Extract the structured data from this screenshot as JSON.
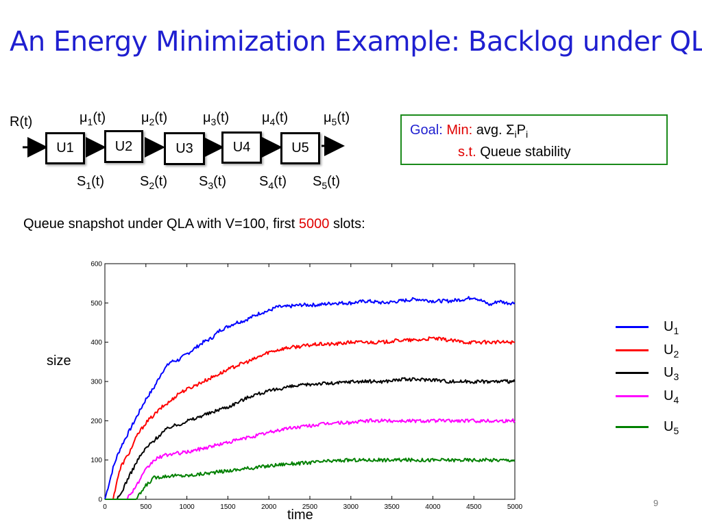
{
  "slide": {
    "title": "An Energy Minimization Example: Backlog under QLA",
    "page_number": "9"
  },
  "network": {
    "arrival_label": "R(t)",
    "service_labels": [
      {
        "sym": "μ",
        "sub": "1",
        "arg": "(t)"
      },
      {
        "sym": "μ",
        "sub": "2",
        "arg": "(t)"
      },
      {
        "sym": "μ",
        "sub": "3",
        "arg": "(t)"
      },
      {
        "sym": "μ",
        "sub": "4",
        "arg": "(t)"
      },
      {
        "sym": "μ",
        "sub": "5",
        "arg": "(t)"
      }
    ],
    "state_labels": [
      {
        "sym": "S",
        "sub": "1",
        "arg": "(t)"
      },
      {
        "sym": "S",
        "sub": "2",
        "arg": "(t)"
      },
      {
        "sym": "S",
        "sub": "3",
        "arg": "(t)"
      },
      {
        "sym": "S",
        "sub": "4",
        "arg": "(t)"
      },
      {
        "sym": "S",
        "sub": "5",
        "arg": "(t)"
      }
    ],
    "queues": [
      "U1",
      "U2",
      "U3",
      "U4",
      "U5"
    ]
  },
  "goal": {
    "goal_word": "Goal:",
    "min_word": "Min:",
    "objective_prefix": "avg. Σ",
    "objective_sub_i": "i",
    "objective_P": "P",
    "st_word": "s.t.",
    "constraint": "Queue stability"
  },
  "caption": {
    "prefix": "Queue snapshot under QLA with V=100, first ",
    "highlight": "5000",
    "suffix": " slots:"
  },
  "chart_data": {
    "type": "line",
    "xlabel": "time",
    "ylabel": "size",
    "xlim": [
      0,
      5000
    ],
    "ylim": [
      0,
      600
    ],
    "xticks": [
      0,
      500,
      1000,
      1500,
      2000,
      2500,
      3000,
      3500,
      4000,
      4500,
      5000
    ],
    "yticks": [
      0,
      100,
      200,
      300,
      400,
      500,
      600
    ],
    "grid": false,
    "legend_position": "right",
    "series": [
      {
        "name": "U1",
        "label_base": "U",
        "label_sub": "1",
        "color": "#0000ff",
        "x": [
          0,
          50,
          100,
          150,
          200,
          300,
          400,
          500,
          600,
          700,
          800,
          900,
          1000,
          1100,
          1200,
          1300,
          1400,
          1500,
          1600,
          1700,
          1800,
          1900,
          2000,
          2100,
          2200,
          2400,
          2600,
          2800,
          3000,
          3200,
          3400,
          3600,
          3800,
          4000,
          4200,
          4400,
          4500,
          4600,
          4700,
          4800,
          4900,
          5000
        ],
        "y": [
          0,
          40,
          80,
          110,
          135,
          175,
          215,
          255,
          285,
          325,
          350,
          355,
          370,
          385,
          400,
          410,
          430,
          440,
          450,
          455,
          465,
          475,
          480,
          490,
          490,
          495,
          495,
          500,
          500,
          505,
          500,
          505,
          510,
          505,
          505,
          510,
          515,
          505,
          495,
          505,
          500,
          500
        ]
      },
      {
        "name": "U2",
        "label_base": "U",
        "label_sub": "2",
        "color": "#ff0000",
        "x": [
          0,
          100,
          150,
          200,
          300,
          400,
          500,
          600,
          700,
          800,
          900,
          1000,
          1100,
          1200,
          1300,
          1400,
          1500,
          1600,
          1800,
          2000,
          2200,
          2400,
          2600,
          2800,
          3000,
          3200,
          3400,
          3600,
          3800,
          4000,
          4200,
          4400,
          4600,
          4800,
          5000
        ],
        "y": [
          0,
          0,
          50,
          85,
          120,
          165,
          195,
          215,
          235,
          250,
          270,
          280,
          290,
          300,
          310,
          320,
          330,
          340,
          355,
          375,
          385,
          390,
          395,
          395,
          400,
          400,
          400,
          405,
          405,
          410,
          405,
          400,
          400,
          400,
          400
        ]
      },
      {
        "name": "U3",
        "label_base": "U",
        "label_sub": "3",
        "color": "#000000",
        "x": [
          0,
          150,
          200,
          250,
          300,
          400,
          500,
          600,
          700,
          800,
          900,
          1000,
          1100,
          1200,
          1300,
          1400,
          1500,
          1600,
          1700,
          1800,
          2000,
          2200,
          2400,
          2600,
          2800,
          3000,
          3200,
          3400,
          3600,
          3800,
          4000,
          4200,
          4400,
          4600,
          4800,
          5000
        ],
        "y": [
          0,
          0,
          15,
          40,
          60,
          100,
          130,
          150,
          170,
          185,
          190,
          200,
          205,
          215,
          220,
          230,
          235,
          245,
          255,
          265,
          275,
          285,
          290,
          295,
          295,
          300,
          300,
          300,
          305,
          305,
          305,
          300,
          300,
          300,
          300,
          300
        ]
      },
      {
        "name": "U4",
        "label_base": "U",
        "label_sub": "4",
        "color": "#ff00ff",
        "x": [
          0,
          250,
          300,
          400,
          500,
          600,
          700,
          800,
          1000,
          1200,
          1400,
          1600,
          1800,
          2000,
          2200,
          2400,
          2600,
          2800,
          3000,
          3200,
          3400,
          3600,
          3800,
          4000,
          4200,
          4400,
          4600,
          4800,
          5000
        ],
        "y": [
          0,
          0,
          10,
          40,
          75,
          100,
          110,
          115,
          120,
          130,
          140,
          150,
          160,
          170,
          180,
          185,
          190,
          195,
          195,
          200,
          200,
          200,
          200,
          200,
          200,
          200,
          200,
          200,
          200
        ]
      },
      {
        "name": "U5",
        "label_base": "U",
        "label_sub": "5",
        "color": "#008000",
        "x": [
          0,
          380,
          400,
          450,
          500,
          600,
          700,
          800,
          1000,
          1200,
          1400,
          1600,
          1800,
          2000,
          2200,
          2400,
          2600,
          2800,
          3000,
          3200,
          3400,
          3600,
          3800,
          4000,
          4200,
          4400,
          4600,
          4800,
          5000
        ],
        "y": [
          0,
          0,
          5,
          20,
          35,
          55,
          58,
          60,
          60,
          65,
          70,
          75,
          80,
          85,
          90,
          92,
          95,
          98,
          100,
          100,
          100,
          100,
          100,
          100,
          100,
          100,
          100,
          100,
          100
        ]
      }
    ]
  }
}
